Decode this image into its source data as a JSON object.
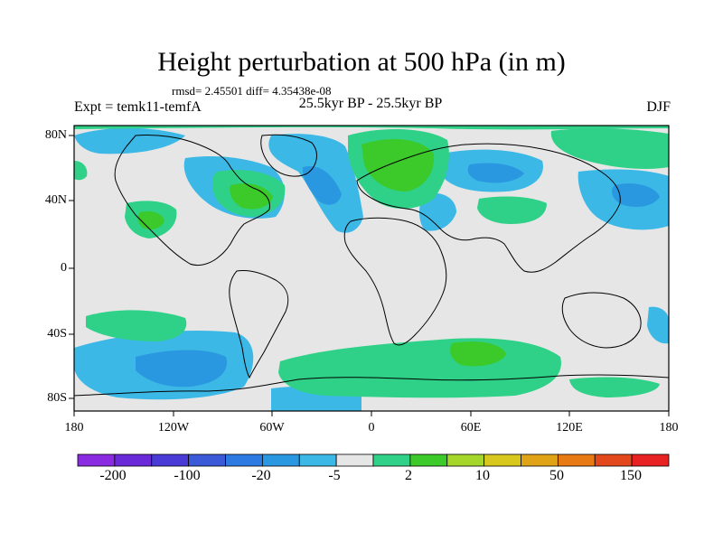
{
  "title": "Height perturbation at 500 hPa (in m)",
  "stats": "rmsd= 2.45501 diff= 4.35438e-08",
  "experiment": "Expt = temk11-temfA",
  "period": "25.5kyr BP - 25.5kyr BP",
  "season": "DJF",
  "axes": {
    "lat_ticks": [
      "80N",
      "40N",
      "0",
      "40S",
      "80S"
    ],
    "lon_ticks": [
      "180",
      "120W",
      "60W",
      "0",
      "60E",
      "120E",
      "180"
    ]
  },
  "colorbar": {
    "labels": [
      "-200",
      "-100",
      "-20",
      "-5",
      "2",
      "10",
      "50",
      "150"
    ],
    "colors": [
      "#8a2be2",
      "#6b2ad8",
      "#4a3ad6",
      "#3a5ad8",
      "#2d7be2",
      "#2a98e0",
      "#3cb8e6",
      "#e6e6e6",
      "#2ed187",
      "#3cc92a",
      "#a4d72a",
      "#d8c81e",
      "#e0a316",
      "#e87a14",
      "#e2481c",
      "#e82222"
    ]
  },
  "map": {
    "background": "#e6e6e6",
    "negative_color": "#3cb8e6",
    "negative_strong_color": "#2a98e0",
    "positive_color": "#2ed187",
    "positive_strong_color": "#3cc92a"
  }
}
